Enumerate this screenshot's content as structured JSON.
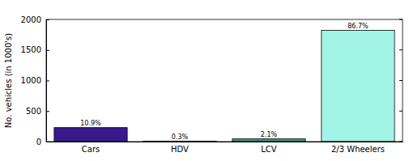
{
  "chart_data": {
    "type": "bar",
    "y_label": "No. vehicles (in 1000's)",
    "categories": [
      "Cars",
      "HDV",
      "LCV",
      "2/3 Wheelers"
    ],
    "values": [
      229,
      6,
      44,
      1820
    ],
    "annotations": [
      "10.9%",
      "0.3%",
      "2.1%",
      "86.7%"
    ],
    "colors": [
      "#3a1a8a",
      "#2a6464",
      "#3a9a8e",
      "#a2f5e6"
    ],
    "ylim": [
      0,
      2000
    ],
    "yticks": [
      0,
      500,
      1000,
      1500,
      2000
    ],
    "grid": false
  }
}
